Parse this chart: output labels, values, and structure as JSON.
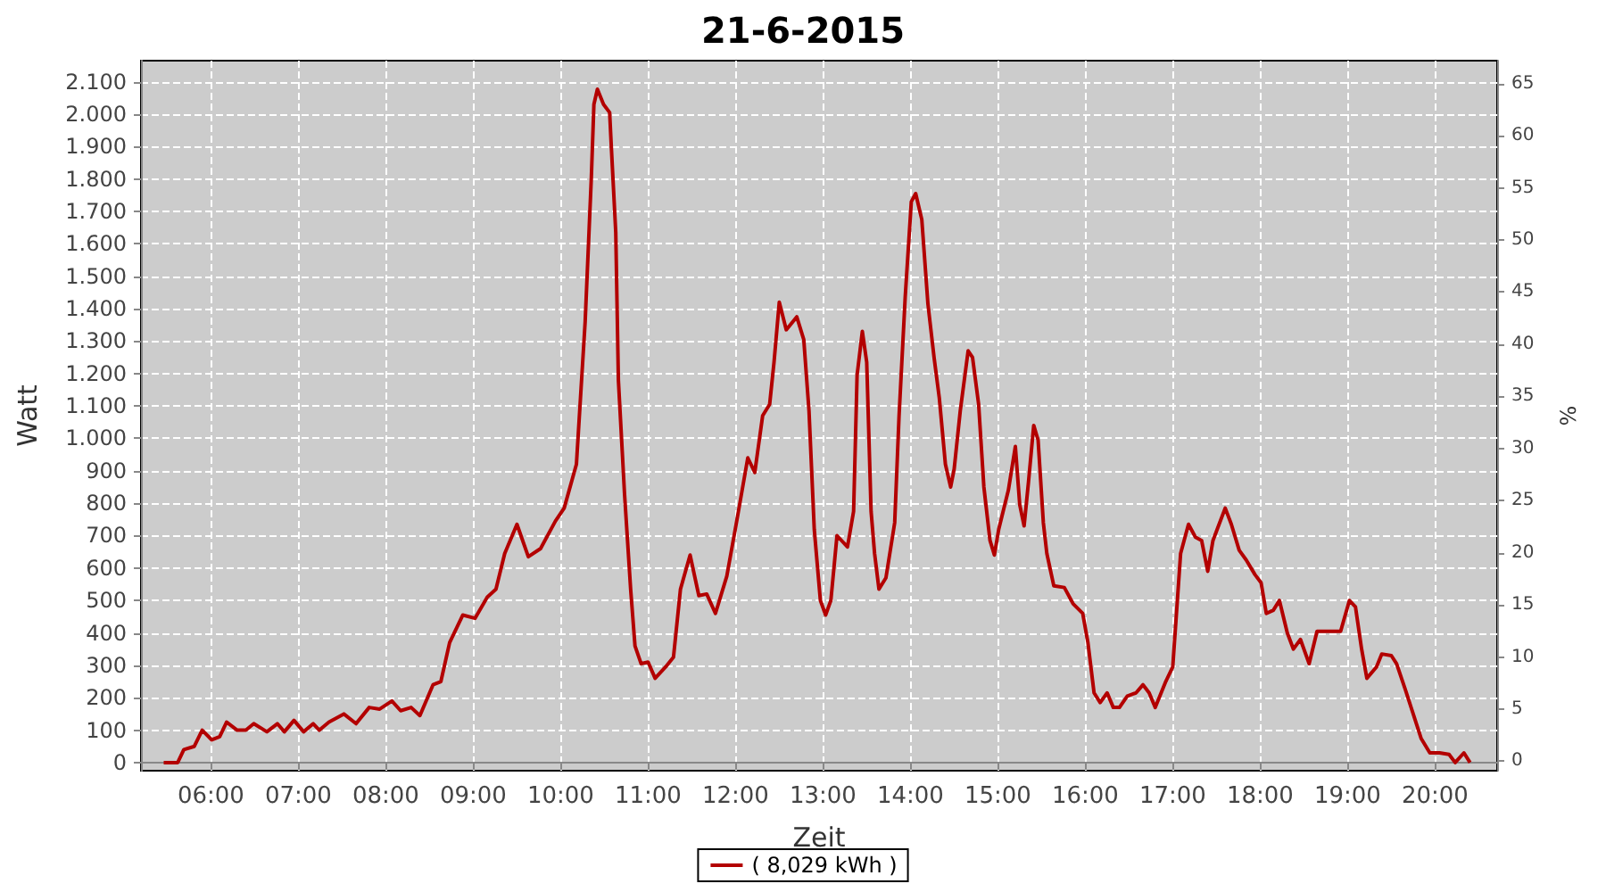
{
  "chart_data": {
    "type": "line",
    "title": "21-6-2015",
    "xlabel": "Zeit",
    "ylabel": "Watt",
    "y2label": "%",
    "xlim": [
      5.2,
      20.71
    ],
    "xticks": [
      {
        "value": 6,
        "label": "06:00"
      },
      {
        "value": 7,
        "label": "07:00"
      },
      {
        "value": 8,
        "label": "08:00"
      },
      {
        "value": 9,
        "label": "09:00"
      },
      {
        "value": 10,
        "label": "10:00"
      },
      {
        "value": 11,
        "label": "11:00"
      },
      {
        "value": 12,
        "label": "12:00"
      },
      {
        "value": 13,
        "label": "13:00"
      },
      {
        "value": 14,
        "label": "14:00"
      },
      {
        "value": 15,
        "label": "15:00"
      },
      {
        "value": 16,
        "label": "16:00"
      },
      {
        "value": 17,
        "label": "17:00"
      },
      {
        "value": 18,
        "label": "18:00"
      },
      {
        "value": 19,
        "label": "19:00"
      },
      {
        "value": 20,
        "label": "20:00"
      }
    ],
    "ylim": [
      -25,
      2165
    ],
    "yticks": [
      0,
      100,
      200,
      300,
      400,
      500,
      600,
      700,
      800,
      900,
      {
        "value": 1000,
        "label": "1.000"
      },
      {
        "value": 1100,
        "label": "1.100"
      },
      {
        "value": 1200,
        "label": "1.200"
      },
      {
        "value": 1300,
        "label": "1.300"
      },
      {
        "value": 1400,
        "label": "1.400"
      },
      {
        "value": 1500,
        "label": "1.500"
      },
      {
        "value": 1600,
        "label": "1.600"
      },
      {
        "value": 1700,
        "label": "1.700"
      },
      {
        "value": 1800,
        "label": "1.800"
      },
      {
        "value": 1900,
        "label": "1.900"
      },
      {
        "value": 2000,
        "label": "2.000"
      },
      {
        "value": 2100,
        "label": "2.100"
      }
    ],
    "y2lim": [
      -0.9,
      67.2
    ],
    "y2ticks": [
      0,
      5,
      10,
      15,
      20,
      25,
      30,
      35,
      40,
      45,
      50,
      55,
      60,
      65
    ],
    "grid": true,
    "legend": "bottom",
    "marker": "none",
    "line_style": "solid",
    "series": [
      {
        "name": "( 8,029 kWh )",
        "color": "#b30000",
        "x": [
          5.46,
          5.62,
          5.69,
          5.81,
          5.9,
          6.01,
          6.1,
          6.18,
          6.3,
          6.4,
          6.49,
          6.64,
          6.76,
          6.84,
          6.95,
          7.06,
          7.17,
          7.24,
          7.35,
          7.52,
          7.66,
          7.81,
          7.93,
          8.07,
          8.17,
          8.29,
          8.39,
          8.54,
          8.63,
          8.73,
          8.88,
          9.02,
          9.16,
          9.26,
          9.36,
          9.5,
          9.63,
          9.77,
          9.94,
          10.04,
          10.18,
          10.28,
          10.35,
          10.38,
          10.42,
          10.49,
          10.56,
          10.58,
          10.63,
          10.66,
          10.73,
          10.8,
          10.85,
          10.92,
          11.0,
          11.08,
          11.2,
          11.29,
          11.37,
          11.48,
          11.58,
          11.67,
          11.77,
          11.9,
          12.02,
          12.14,
          12.22,
          12.31,
          12.39,
          12.44,
          12.5,
          12.58,
          12.7,
          12.78,
          12.84,
          12.9,
          12.97,
          13.03,
          13.09,
          13.16,
          13.28,
          13.35,
          13.39,
          13.45,
          13.5,
          13.55,
          13.59,
          13.64,
          13.72,
          13.82,
          13.87,
          13.94,
          14.01,
          14.06,
          14.13,
          14.2,
          14.27,
          14.33,
          14.4,
          14.46,
          14.5,
          14.57,
          14.66,
          14.71,
          14.78,
          14.84,
          14.91,
          14.96,
          15.01,
          15.12,
          15.2,
          15.25,
          15.3,
          15.35,
          15.41,
          15.46,
          15.52,
          15.56,
          15.64,
          15.76,
          15.86,
          15.97,
          16.03,
          16.1,
          16.17,
          16.25,
          16.32,
          16.39,
          16.48,
          16.58,
          16.66,
          16.73,
          16.8,
          16.92,
          17.0,
          17.09,
          17.18,
          17.26,
          17.33,
          17.4,
          17.46,
          17.53,
          17.6,
          17.67,
          17.76,
          17.84,
          17.94,
          18.01,
          18.07,
          18.15,
          18.22,
          18.31,
          18.38,
          18.46,
          18.56,
          18.65,
          18.71,
          18.82,
          18.92,
          19.02,
          19.09,
          19.16,
          19.22,
          19.33,
          19.39,
          19.5,
          19.56,
          19.66,
          19.75,
          19.84,
          19.94,
          20.05,
          20.16,
          20.23,
          20.33,
          20.4
        ],
        "values": [
          0,
          0,
          40,
          50,
          100,
          70,
          80,
          125,
          100,
          100,
          120,
          95,
          120,
          95,
          130,
          95,
          120,
          100,
          125,
          150,
          120,
          170,
          165,
          190,
          160,
          170,
          145,
          240,
          250,
          370,
          455,
          445,
          510,
          535,
          645,
          735,
          635,
          660,
          745,
          785,
          920,
          1360,
          1800,
          2030,
          2077,
          2030,
          2005,
          1895,
          1635,
          1180,
          830,
          535,
          360,
          305,
          310,
          260,
          295,
          325,
          535,
          640,
          515,
          520,
          460,
          575,
          755,
          940,
          895,
          1070,
          1105,
          1235,
          1420,
          1335,
          1375,
          1305,
          1085,
          720,
          500,
          455,
          500,
          700,
          665,
          775,
          1195,
          1330,
          1235,
          775,
          645,
          535,
          570,
          740,
          1070,
          1435,
          1730,
          1755,
          1675,
          1415,
          1250,
          1125,
          920,
          850,
          905,
          1085,
          1270,
          1250,
          1105,
          850,
          685,
          640,
          720,
          840,
          975,
          795,
          730,
          865,
          1040,
          995,
          740,
          645,
          545,
          540,
          490,
          460,
          370,
          215,
          185,
          215,
          170,
          170,
          205,
          215,
          240,
          215,
          170,
          250,
          295,
          645,
          735,
          695,
          685,
          590,
          685,
          735,
          785,
          735,
          655,
          625,
          580,
          555,
          460,
          470,
          500,
          400,
          350,
          380,
          305,
          405,
          405,
          405,
          405,
          500,
          480,
          350,
          260,
          295,
          335,
          330,
          305,
          225,
          150,
          75,
          30,
          30,
          25,
          0,
          30,
          0
        ]
      }
    ]
  }
}
